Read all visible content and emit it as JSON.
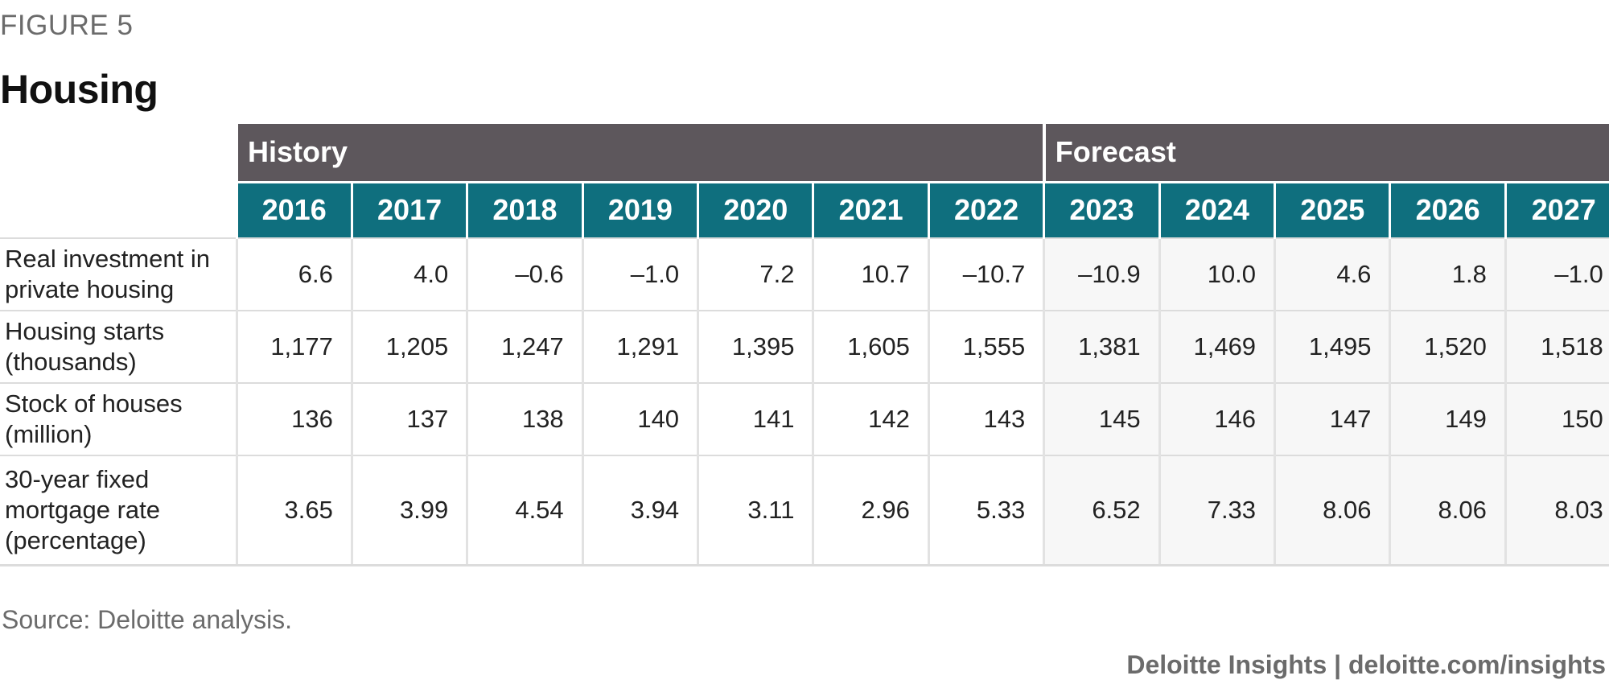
{
  "figure_label": "FIGURE 5",
  "title": "Housing",
  "groups": {
    "history": "History",
    "forecast": "Forecast"
  },
  "source": "Source: Deloitte analysis.",
  "credit": "Deloitte Insights | deloitte.com/insights",
  "colors": {
    "group_header": "#5d575c",
    "year_header": "#0f6f7e",
    "forecast_fill": "#f7f7f7"
  },
  "chart_data": {
    "type": "table",
    "title": "Housing",
    "columns": [
      "2016",
      "2017",
      "2018",
      "2019",
      "2020",
      "2021",
      "2022",
      "2023",
      "2024",
      "2025",
      "2026",
      "2027"
    ],
    "history_columns": [
      "2016",
      "2017",
      "2018",
      "2019",
      "2020",
      "2021",
      "2022"
    ],
    "forecast_columns": [
      "2023",
      "2024",
      "2025",
      "2026",
      "2027"
    ],
    "rows": [
      {
        "label": "Real investment in private housing",
        "label_lines": [
          "Real investment in",
          "private housing"
        ],
        "values": [
          "6.6",
          "4.0",
          "–0.6",
          "–1.0",
          "7.2",
          "10.7",
          "–10.7",
          "–10.9",
          "10.0",
          "4.6",
          "1.8",
          "–1.0"
        ]
      },
      {
        "label": "Housing starts (thousands)",
        "label_lines": [
          "Housing starts",
          "(thousands)"
        ],
        "values": [
          "1,177",
          "1,205",
          "1,247",
          "1,291",
          "1,395",
          "1,605",
          "1,555",
          "1,381",
          "1,469",
          "1,495",
          "1,520",
          "1,518"
        ]
      },
      {
        "label": "Stock of houses (million)",
        "label_lines": [
          "Stock of houses",
          "(million)"
        ],
        "values": [
          "136",
          "137",
          "138",
          "140",
          "141",
          "142",
          "143",
          "145",
          "146",
          "147",
          "149",
          "150"
        ]
      },
      {
        "label": "30-year fixed mortgage rate (percentage)",
        "label_lines": [
          "30-year fixed",
          "mortgage rate",
          "(percentage)"
        ],
        "values": [
          "3.65",
          "3.99",
          "4.54",
          "3.94",
          "3.11",
          "2.96",
          "5.33",
          "6.52",
          "7.33",
          "8.06",
          "8.06",
          "8.03"
        ]
      }
    ]
  }
}
